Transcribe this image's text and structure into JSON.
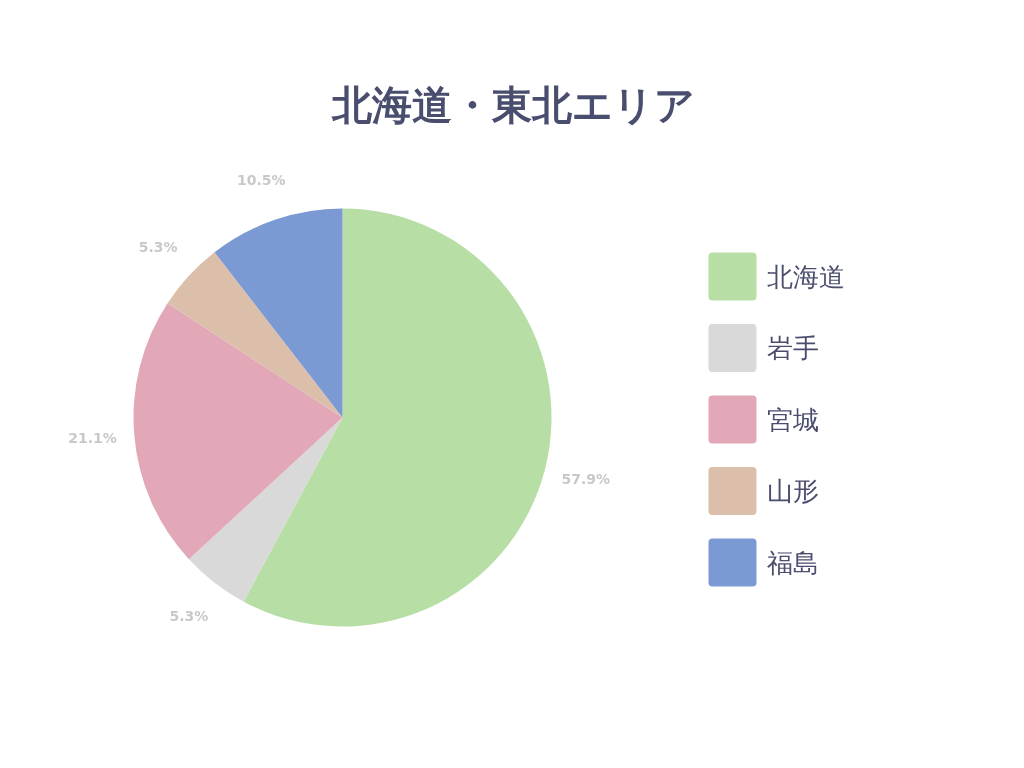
{
  "chart_data": {
    "type": "pie",
    "title": "北海道・東北エリア",
    "categories": [
      "北海道",
      "岩手",
      "宮城",
      "山形",
      "福島"
    ],
    "values": [
      57.9,
      5.3,
      21.1,
      5.3,
      10.5
    ],
    "value_labels": [
      "57.9%",
      "5.3%",
      "21.1%",
      "5.3%",
      "10.5%"
    ],
    "colors": [
      "#b7dea4",
      "#d9d9d9",
      "#e2a8b7",
      "#dbbfaa",
      "#7b99d3"
    ],
    "legend": "right"
  }
}
